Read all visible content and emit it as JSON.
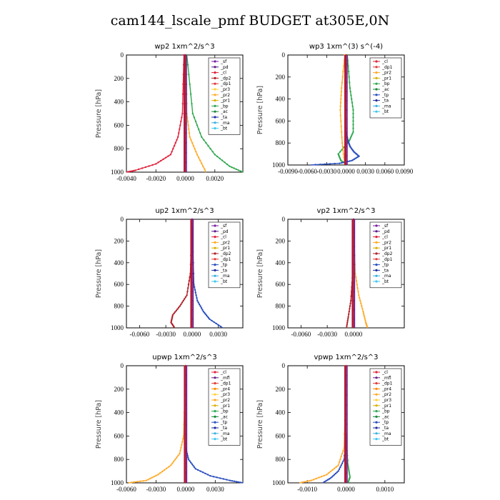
{
  "title": "cam144_lscale_pmf  BUDGET at305E,0N",
  "colors": {
    "sf": "#7a1fa2",
    "pd": "#5b1a8a",
    "cl": "#e0223a",
    "dp2": "#b0202a",
    "dp1": "#e23b3b",
    "pr3": "#ffd23a",
    "pr2": "#ffaa2a",
    "pr1": "#d8b000",
    "pr4": "#ff8a00",
    "bp": "#2fa84f",
    "ac": "#1a8a3a",
    "tp": "#2a4fbf",
    "ta": "#1f2f9f",
    "ma": "#3bb0e0",
    "bt": "#40c8f0",
    "mfl": "#6a1f8a"
  },
  "chart_data": [
    {
      "type": "line",
      "title": "wp2   1xm^2/s^3",
      "ylabel": "Pressure  [hPa]",
      "xlim": [
        -0.004,
        0.0039
      ],
      "ylim": [
        1000,
        0
      ],
      "xticks": [
        -0.004,
        -0.002,
        0,
        0.002
      ],
      "xtick_labels": [
        "-0.0040",
        "-0.0020",
        "0.0000",
        "0.0020"
      ],
      "yticks": [
        0,
        200,
        400,
        600,
        800,
        1000
      ],
      "ytick_labels": [
        "0",
        "200",
        "400",
        "600",
        "800",
        "1000"
      ],
      "legend": [
        "_sf",
        "_pd",
        "_cl",
        "_dp2",
        "_dp1",
        "_pr3",
        "_pr2",
        "_pr1",
        "_bp",
        "_ac",
        "_ta",
        "_ma",
        "_bt"
      ],
      "legend_position": "top-right",
      "series": [
        {
          "name": "_cl",
          "x": [
            -0.0001,
            -0.0002,
            -0.0005,
            -0.001,
            -0.002,
            -0.0034,
            -0.004
          ],
          "y": [
            0,
            500,
            700,
            850,
            930,
            985,
            1000
          ]
        },
        {
          "name": "_pr2",
          "x": [
            5e-05,
            0.0001,
            0.0003,
            0.0008,
            0.0014
          ],
          "y": [
            0,
            500,
            700,
            850,
            1000
          ]
        },
        {
          "name": "_bp",
          "x": [
            0.0001,
            0.0005,
            0.0011,
            0.002,
            0.003,
            0.0039
          ],
          "y": [
            0,
            500,
            700,
            850,
            950,
            1000
          ]
        },
        {
          "name": "_sf",
          "x": [
            0,
            0,
            0
          ],
          "y": [
            0,
            500,
            1000
          ]
        }
      ]
    },
    {
      "type": "line",
      "title": "wp3   1xm^(3) s^(-4)",
      "ylabel": "Pressure  [hPa]",
      "xlim": [
        -0.009,
        0.009
      ],
      "ylim": [
        1000,
        0
      ],
      "xticks": [
        -0.009,
        -0.006,
        -0.003,
        0,
        0.003,
        0.006,
        0.009
      ],
      "xtick_labels": [
        "-0.0090",
        "-0.0060",
        "-0.0030",
        "0.0000",
        "0.0030",
        "0.0060",
        "0.0090"
      ],
      "yticks": [
        0,
        200,
        400,
        600,
        800,
        1000
      ],
      "ytick_labels": [
        "0",
        "200",
        "400",
        "600",
        "800",
        "1000"
      ],
      "legend": [
        "_cl",
        "_dp1",
        "_pr2",
        "_pr1",
        "_bp",
        "_ac",
        "_tp",
        "_ta",
        "_ma",
        "_bt"
      ],
      "legend_position": "top-right",
      "series": [
        {
          "name": "_bp",
          "x": [
            0.0002,
            0.0006,
            0.0011,
            0.0011,
            0.0005,
            -0.0012,
            -0.0008,
            0.0003
          ],
          "y": [
            0,
            300,
            500,
            700,
            780,
            900,
            960,
            1000
          ]
        },
        {
          "name": "_pr2",
          "x": [
            -0.0002,
            -0.0007,
            -0.0009,
            -0.0006,
            -0.0002
          ],
          "y": [
            0,
            300,
            500,
            800,
            1000
          ]
        },
        {
          "name": "_tp",
          "x": [
            0,
            0.0003,
            0.0006,
            0.0012,
            0.002,
            0.0009,
            -0.001,
            -0.0055
          ],
          "y": [
            700,
            780,
            830,
            880,
            920,
            960,
            985,
            1000
          ]
        },
        {
          "name": "_cl",
          "x": [
            0,
            0,
            0
          ],
          "y": [
            0,
            500,
            1000
          ]
        }
      ]
    },
    {
      "type": "line",
      "title": "up2   1xm^2/s^3",
      "ylabel": "Pressure  [hPa]",
      "xlim": [
        -0.0075,
        0.0058
      ],
      "ylim": [
        1000,
        0
      ],
      "xticks": [
        -0.006,
        -0.003,
        0,
        0.003
      ],
      "xtick_labels": [
        "-0.0060",
        "-0.0030",
        "0.0000",
        "0.0030"
      ],
      "yticks": [
        0,
        200,
        400,
        600,
        800,
        1000
      ],
      "ytick_labels": [
        "0",
        "200",
        "400",
        "600",
        "800",
        "1000"
      ],
      "legend": [
        "_sf",
        "_pd",
        "_cl",
        "_pr2",
        "_pr1",
        "_dp2",
        "_dp1",
        "_tp",
        "_ta",
        "_ma",
        "_bt"
      ],
      "legend_position": "top-right",
      "series": [
        {
          "name": "_dp2",
          "x": [
            0,
            -0.0002,
            -0.0006,
            -0.0014,
            -0.0022,
            -0.0024,
            -0.002
          ],
          "y": [
            0,
            500,
            700,
            800,
            880,
            950,
            1000
          ]
        },
        {
          "name": "_tp",
          "x": [
            0,
            0.0002,
            0.0006,
            0.0013,
            0.002,
            0.0035
          ],
          "y": [
            0,
            600,
            750,
            850,
            920,
            1000
          ]
        },
        {
          "name": "_sf",
          "x": [
            0,
            0,
            0
          ],
          "y": [
            0,
            500,
            1000
          ]
        }
      ]
    },
    {
      "type": "line",
      "title": "vp2   1xm^2/s^3",
      "ylabel": "Pressure  [hPa]",
      "xlim": [
        -0.0075,
        0.0058
      ],
      "ylim": [
        1000,
        0
      ],
      "xticks": [
        -0.006,
        -0.003,
        0
      ],
      "xtick_labels": [
        "-0.0060",
        "-0.0030",
        "0.0000"
      ],
      "yticks": [
        0,
        200,
        400,
        600,
        800,
        1000
      ],
      "ytick_labels": [
        "0",
        "200",
        "400",
        "600",
        "800",
        "1000"
      ],
      "legend": [
        "_sf",
        "_pd",
        "_cl",
        "_pr2",
        "_pr1",
        "_dp2",
        "_dp1",
        "_tp",
        "_ta",
        "_ma",
        "_bt"
      ],
      "legend_position": "top-right",
      "series": [
        {
          "name": "_pr2",
          "x": [
            0,
            0.0002,
            0.0006,
            0.0011,
            0.0014,
            0.0016
          ],
          "y": [
            0,
            500,
            700,
            850,
            950,
            1000
          ]
        },
        {
          "name": "_dp2",
          "x": [
            0,
            -0.0001,
            -0.0003,
            -0.0006,
            -0.0008
          ],
          "y": [
            0,
            500,
            750,
            900,
            1000
          ]
        },
        {
          "name": "_sf",
          "x": [
            0,
            0,
            0
          ],
          "y": [
            0,
            500,
            1000
          ]
        }
      ]
    },
    {
      "type": "line",
      "title": "upwp   1xm^2/s^3",
      "ylabel": "Pressure  [hPa]",
      "xlim": [
        -0.006,
        0.0058
      ],
      "ylim": [
        1000,
        0
      ],
      "xticks": [
        -0.006,
        -0.003,
        0,
        0.003
      ],
      "xtick_labels": [
        "-0.0060",
        "-0.0030",
        "0.0000",
        "0.0030"
      ],
      "yticks": [
        0,
        200,
        400,
        600,
        800,
        1000
      ],
      "ytick_labels": [
        "0",
        "200",
        "400",
        "600",
        "800",
        "1000"
      ],
      "legend": [
        "_cl",
        "_mfl",
        "_dp1",
        "_pr4",
        "_pr3",
        "_pr2",
        "_pr1",
        "_bp",
        "_ac",
        "_tp",
        "_ta",
        "_ma",
        "_bt"
      ],
      "legend_position": "top-right",
      "series": [
        {
          "name": "_pr2",
          "x": [
            0,
            -0.0002,
            -0.0006,
            -0.0015,
            -0.0028,
            -0.004,
            -0.0058
          ],
          "y": [
            0,
            600,
            750,
            850,
            930,
            980,
            1000
          ]
        },
        {
          "name": "_tp",
          "x": [
            0,
            0.0003,
            0.001,
            0.0025,
            0.0045,
            0.0058
          ],
          "y": [
            700,
            800,
            880,
            940,
            980,
            1000
          ]
        },
        {
          "name": "_cl",
          "x": [
            0,
            0,
            0
          ],
          "y": [
            0,
            500,
            1000
          ]
        }
      ]
    },
    {
      "type": "line",
      "title": "vpwp   1xm^2/s^3",
      "ylabel": "Pressure  [hPa]",
      "xlim": [
        -0.0015,
        0.0015
      ],
      "ylim": [
        1000,
        0
      ],
      "xticks": [
        -0.001,
        0,
        0.001
      ],
      "xtick_labels": [
        "-0.0010",
        "0.0000",
        "0.0010"
      ],
      "yticks": [
        0,
        200,
        400,
        600,
        800,
        1000
      ],
      "ytick_labels": [
        "0",
        "200",
        "400",
        "600",
        "800",
        "1000"
      ],
      "legend": [
        "_cl",
        "_mfl",
        "_dp1",
        "_pr4",
        "_pr2",
        "_pr3",
        "_pr1",
        "_bp",
        "_ac",
        "_tp",
        "_ta",
        "_ma",
        "_bt"
      ],
      "legend_position": "top-right",
      "series": [
        {
          "name": "_pr2",
          "x": [
            0,
            -5e-05,
            -0.0002,
            -0.0005,
            -0.0009,
            -0.0012
          ],
          "y": [
            0,
            700,
            850,
            930,
            980,
            1000
          ]
        },
        {
          "name": "_tp",
          "x": [
            0,
            -5e-05,
            -0.0002,
            -0.0004,
            -0.0006
          ],
          "y": [
            600,
            800,
            900,
            960,
            1000
          ]
        },
        {
          "name": "_bp",
          "x": [
            0,
            5e-05,
            0.0001,
            5e-05
          ],
          "y": [
            600,
            850,
            950,
            1000
          ]
        },
        {
          "name": "_cl",
          "x": [
            0,
            0,
            0
          ],
          "y": [
            0,
            500,
            1000
          ]
        }
      ]
    }
  ]
}
